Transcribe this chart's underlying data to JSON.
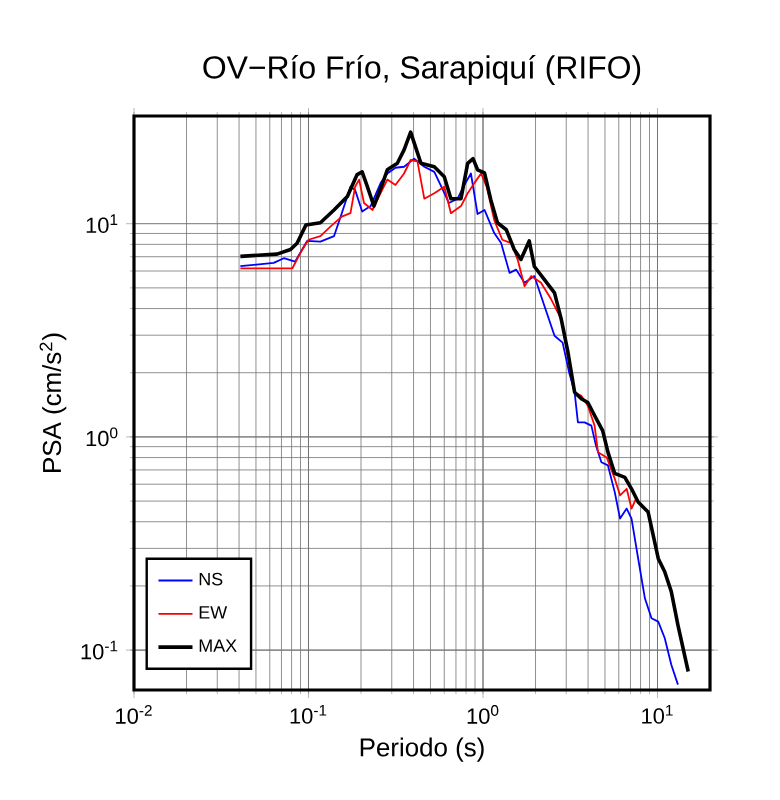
{
  "chart_data": {
    "type": "line",
    "title": "OV−Río Frío, Sarapiquí (RIFO)",
    "xlabel": "Periodo (s)",
    "ylabel": "PSA (cm/s$^{2}$)",
    "log": "xy",
    "grid": true,
    "legend": "bottom left",
    "line_style": "solid",
    "marker": "none",
    "xlim": [
      0.01,
      20
    ],
    "ylim": [
      0.065,
      32
    ],
    "xticks": [
      {
        "value": 0.01,
        "label": "10$^{-2}$"
      },
      {
        "value": 0.1,
        "label": "10$^{-1}$"
      },
      {
        "value": 1,
        "label": "10$^{0}$"
      },
      {
        "value": 10,
        "label": "10$^{1}$"
      }
    ],
    "yticks": [
      {
        "value": 0.1,
        "label": "10$^{-1}$"
      },
      {
        "value": 1,
        "label": "10$^{0}$"
      },
      {
        "value": 10,
        "label": "10$^{1}$"
      }
    ],
    "series": [
      {
        "name": "NS",
        "color": "#0000ff",
        "x": [
          0.0407,
          0.0632,
          0.0722,
          0.0838,
          0.0982,
          0.117,
          0.14,
          0.153,
          0.174,
          0.185,
          0.203,
          0.227,
          0.259,
          0.283,
          0.315,
          0.353,
          0.403,
          0.461,
          0.526,
          0.589,
          0.638,
          0.715,
          0.782,
          0.853,
          0.931,
          1.02,
          1.16,
          1.27,
          1.42,
          1.55,
          1.73,
          1.97,
          2.25,
          2.57,
          2.86,
          3.12,
          3.35,
          3.5,
          3.82,
          4.18,
          4.44,
          4.77,
          5.2,
          5.69,
          6.1,
          6.66,
          7.1,
          7.75,
          8.47,
          9.24,
          10.1,
          11.0,
          12.0,
          13.1
        ],
        "values": [
          6.32,
          6.55,
          6.89,
          6.64,
          8.3,
          8.24,
          8.74,
          10.8,
          14.9,
          14.4,
          11.4,
          12.1,
          15.5,
          17.2,
          18.3,
          18.5,
          20.2,
          18.5,
          17.5,
          14.4,
          12.5,
          13.1,
          15.2,
          17.2,
          11.1,
          11.6,
          9.04,
          8.11,
          5.88,
          6.09,
          5.28,
          5.68,
          4.11,
          2.98,
          2.77,
          2.0,
          1.62,
          1.17,
          1.17,
          1.13,
          0.912,
          0.761,
          0.735,
          0.551,
          0.414,
          0.461,
          0.414,
          0.269,
          0.175,
          0.141,
          0.136,
          0.114,
          0.0853,
          0.0689
        ]
      },
      {
        "name": "EW",
        "color": "#ff0000",
        "x": [
          0.0407,
          0.0809,
          0.0899,
          0.1,
          0.117,
          0.134,
          0.155,
          0.174,
          0.185,
          0.195,
          0.208,
          0.233,
          0.259,
          0.283,
          0.315,
          0.353,
          0.385,
          0.421,
          0.461,
          0.526,
          0.6,
          0.655,
          0.748,
          0.817,
          0.892,
          0.975,
          1.05,
          1.16,
          1.29,
          1.45,
          1.58,
          1.73,
          1.89,
          2.15,
          2.46,
          2.81,
          3.35,
          3.66,
          3.99,
          4.36,
          4.56,
          5.12,
          5.69,
          6.1,
          6.66,
          7.1,
          7.54
        ],
        "values": [
          6.18,
          6.18,
          7.3,
          8.41,
          8.74,
          9.72,
          10.8,
          11.2,
          14.9,
          16.1,
          12.5,
          11.6,
          13.9,
          16.1,
          15.2,
          17.2,
          19.9,
          19.6,
          13.1,
          13.9,
          14.9,
          11.2,
          12.1,
          13.9,
          15.5,
          17.2,
          14.9,
          10.4,
          8.41,
          8.11,
          6.79,
          5.09,
          5.68,
          5.28,
          4.42,
          3.56,
          1.62,
          1.56,
          1.4,
          1.13,
          0.848,
          0.801,
          0.637,
          0.532,
          0.571,
          0.461,
          0.513
        ]
      },
      {
        "name": "MAX",
        "color": "#000000",
        "x": [
          0.0407,
          0.066,
          0.0789,
          0.086,
          0.0966,
          0.117,
          0.14,
          0.167,
          0.19,
          0.203,
          0.217,
          0.237,
          0.264,
          0.283,
          0.323,
          0.353,
          0.385,
          0.41,
          0.441,
          0.526,
          0.6,
          0.655,
          0.748,
          0.817,
          0.877,
          0.931,
          1.02,
          1.11,
          1.21,
          1.36,
          1.51,
          1.65,
          1.84,
          1.97,
          2.25,
          2.57,
          2.81,
          3.07,
          3.35,
          3.66,
          3.99,
          4.36,
          4.85,
          5.2,
          5.69,
          6.5,
          7.1,
          7.75,
          8.84,
          10.1,
          11.0,
          12.0,
          13.1,
          15.0
        ],
        "values": [
          7.03,
          7.2,
          7.57,
          8.1,
          9.85,
          10.1,
          11.6,
          13.4,
          17.0,
          17.5,
          15.0,
          12.1,
          15.2,
          17.9,
          19.2,
          22.2,
          26.9,
          23.0,
          19.2,
          18.5,
          16.6,
          13.1,
          13.1,
          19.2,
          20.2,
          17.9,
          17.3,
          12.9,
          10.1,
          9.37,
          7.57,
          6.8,
          8.3,
          6.3,
          5.47,
          4.74,
          3.56,
          2.49,
          1.62,
          1.51,
          1.45,
          1.26,
          1.07,
          0.848,
          0.674,
          0.646,
          0.571,
          0.495,
          0.444,
          0.269,
          0.233,
          0.188,
          0.131,
          0.0794
        ]
      }
    ]
  }
}
